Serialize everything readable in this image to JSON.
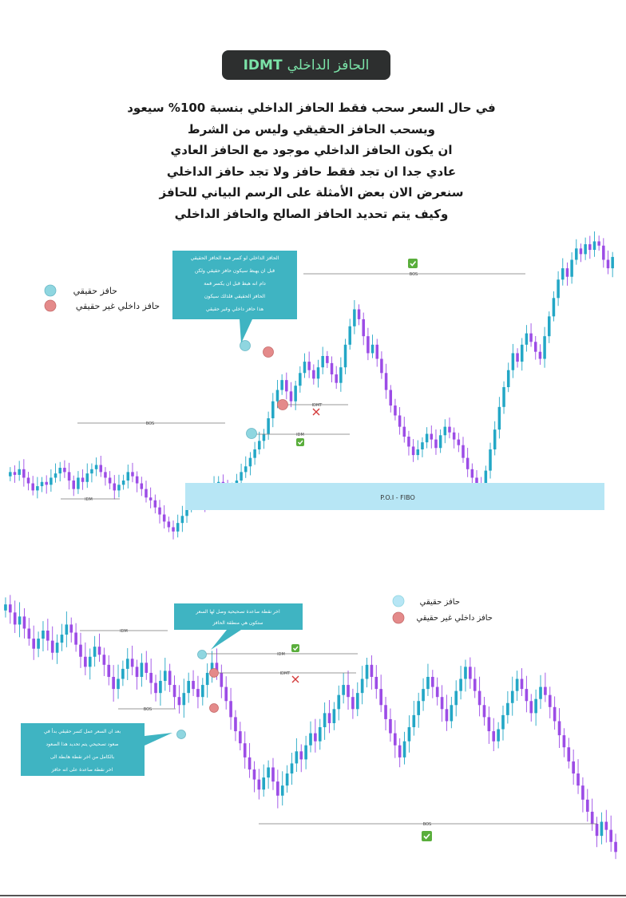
{
  "header": {
    "title_ar": "الحافز الداخلي",
    "title_en": "IDMT"
  },
  "intro_lines": [
    "في حال السعر سحب فقط الحافز الداخلي بنسبة 100% سيعود",
    "ويسحب الحافز الحقيقي وليس من الشرط",
    "ان يكون الحافز الداخلي موجود مع الحافز العادي",
    "عادي جدا ان تجد فقط حافز ولا تجد حافز الداخلي",
    "سنعرض الان بعض الأمثلة على الرسم البياني للحافز",
    "وكيف يتم تحديد الحافز الصالح والحافز الداخلي"
  ],
  "legend": {
    "true_idm": "حافز حقيقي",
    "fake_idm": "حافز داخلي غير حقيقي"
  },
  "colors": {
    "bull": "#23a7c6",
    "bear": "#9c4ce6",
    "true_marker": "#8fd6e0",
    "fake_marker": "#e48a8a",
    "poi_zone": "#b7e6f5",
    "callout": "#3fb4c2",
    "check": "#5aae3c",
    "cross": "#d33a3a"
  },
  "chart_data": [
    {
      "type": "candlestick",
      "annotations": [
        "BOS",
        "IDM",
        "IDMT",
        "IDM",
        "BOS",
        "P.O.I - FIBO"
      ],
      "callout_lines": [
        "الحافز الداخلي لو كسر قمة الحافز الحقيقي",
        "قبل ان يهبط سيكون حافز حقيقي ولكن",
        "دام انه هبط قبل ان يكسر قمة",
        "الحافز الحقيقي فلذلك سيكون",
        "هذا حافز داخلي وغير حقيقي"
      ],
      "zone_label": "P.O.I - FIBO",
      "status": [
        "valid",
        "invalid",
        "valid",
        "valid"
      ]
    },
    {
      "type": "candlestick",
      "annotations": [
        "IDM",
        "IDM",
        "IDMT",
        "BOS",
        "BOS"
      ],
      "callout_top_lines": [
        "اخر نقطة صاعدة تصحيحية وصل لها السعر",
        "ستكون هي منطقة الحافز"
      ],
      "callout_bottom_lines": [
        "بعد ان السعر عمل كسر حقيقي بدأ في",
        "صعود تصحيحي يتم تحديد هذا الصعود",
        "بالكامل من اخر نقطة هابطة الى",
        "اخر نقطة صاعدة على انه حافز"
      ],
      "status": [
        "valid",
        "invalid",
        "valid"
      ]
    }
  ],
  "series_seed": {
    "chart1_closes": [
      0.7,
      0.68,
      0.72,
      0.66,
      0.62,
      0.57,
      0.6,
      0.63,
      0.61,
      0.66,
      0.69,
      0.73,
      0.7,
      0.64,
      0.58,
      0.66,
      0.63,
      0.69,
      0.72,
      0.75,
      0.7,
      0.66,
      0.62,
      0.57,
      0.61,
      0.64,
      0.7,
      0.67,
      0.62,
      0.58,
      0.52,
      0.5,
      0.45,
      0.4,
      0.35,
      0.31,
      0.28,
      0.34,
      0.39,
      0.45,
      0.51,
      0.55,
      0.52,
      0.48,
      0.54,
      0.6,
      0.63,
      0.58,
      0.55,
      0.59,
      0.64,
      0.7,
      0.74,
      0.8,
      0.86,
      0.92,
      0.97,
      1.08,
      1.2,
      1.28,
      1.35,
      1.27,
      1.2,
      1.31,
      1.4,
      1.48,
      1.42,
      1.36,
      1.44,
      1.52,
      1.47,
      1.39,
      1.33,
      1.44,
      1.6,
      1.73,
      1.85,
      1.78,
      1.66,
      1.54,
      1.6,
      1.5,
      1.4,
      1.28,
      1.17,
      1.1,
      1.02,
      0.95,
      0.88,
      0.82,
      0.86,
      0.91,
      0.97,
      0.93,
      0.87,
      0.96,
      1.02,
      0.98,
      0.93,
      0.89,
      0.8,
      0.72,
      0.66,
      0.6,
      0.58,
      0.71,
      0.86,
      1.0,
      1.16,
      1.3,
      1.42,
      1.54,
      1.48,
      1.6,
      1.68,
      1.62,
      1.55,
      1.5,
      1.66,
      1.8,
      1.93,
      2.06,
      2.14,
      2.08,
      2.2,
      2.28,
      2.24,
      2.31,
      2.27,
      2.33,
      2.3,
      2.2,
      2.14,
      2.22
    ],
    "chart2_closes": [
      1.5,
      1.46,
      1.4,
      1.44,
      1.38,
      1.33,
      1.28,
      1.33,
      1.37,
      1.32,
      1.26,
      1.31,
      1.35,
      1.4,
      1.36,
      1.3,
      1.24,
      1.19,
      1.24,
      1.29,
      1.25,
      1.2,
      1.14,
      1.08,
      1.13,
      1.18,
      1.23,
      1.19,
      1.14,
      1.21,
      1.16,
      1.11,
      1.06,
      1.12,
      1.17,
      1.1,
      1.04,
      1.0,
      1.06,
      1.12,
      1.08,
      1.04,
      1.1,
      1.16,
      1.21,
      1.16,
      1.09,
      1.02,
      0.94,
      0.87,
      0.81,
      0.74,
      0.68,
      0.63,
      0.58,
      0.64,
      0.69,
      0.62,
      0.55,
      0.6,
      0.66,
      0.71,
      0.77,
      0.73,
      0.8,
      0.86,
      0.82,
      0.89,
      0.96,
      0.91,
      0.98,
      1.05,
      1.1,
      1.04,
      0.98,
      1.06,
      1.13,
      1.2,
      1.14,
      1.08,
      1.0,
      0.93,
      0.86,
      0.8,
      0.74,
      0.82,
      0.89,
      0.95,
      1.02,
      1.08,
      1.14,
      1.09,
      1.04,
      0.98,
      0.92,
      1.0,
      1.07,
      1.13,
      1.19,
      1.13,
      1.07,
      1.0,
      0.94,
      0.87,
      0.82,
      0.88,
      0.95,
      1.01,
      1.07,
      1.13,
      1.08,
      1.02,
      0.96,
      1.03,
      1.09,
      1.05,
      0.99,
      0.92,
      0.85,
      0.79,
      0.72,
      0.66,
      0.6,
      0.53,
      0.47,
      0.41,
      0.35,
      0.42,
      0.38,
      0.32,
      0.27
    ]
  }
}
